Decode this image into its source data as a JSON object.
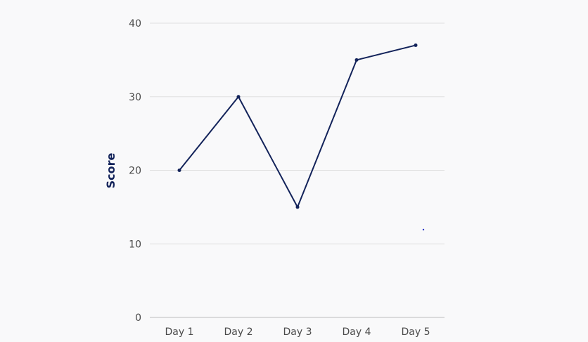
{
  "chart_data": {
    "type": "line",
    "categories": [
      "Day 1",
      "Day 2",
      "Day 3",
      "Day 4",
      "Day 5"
    ],
    "series": [
      {
        "values": [
          20,
          30,
          15,
          35,
          37
        ]
      }
    ],
    "ylabel": "Score",
    "ylim": [
      0,
      40
    ],
    "yticks": [
      0,
      10,
      20,
      30,
      40
    ],
    "grid": true,
    "colors": {
      "line": "#13235a",
      "grid": "#e0e0e0",
      "axis": "#bdbdbd",
      "label": "#4a4a4a",
      "title": "#13235a",
      "stray_point": "#2a33c8"
    }
  }
}
